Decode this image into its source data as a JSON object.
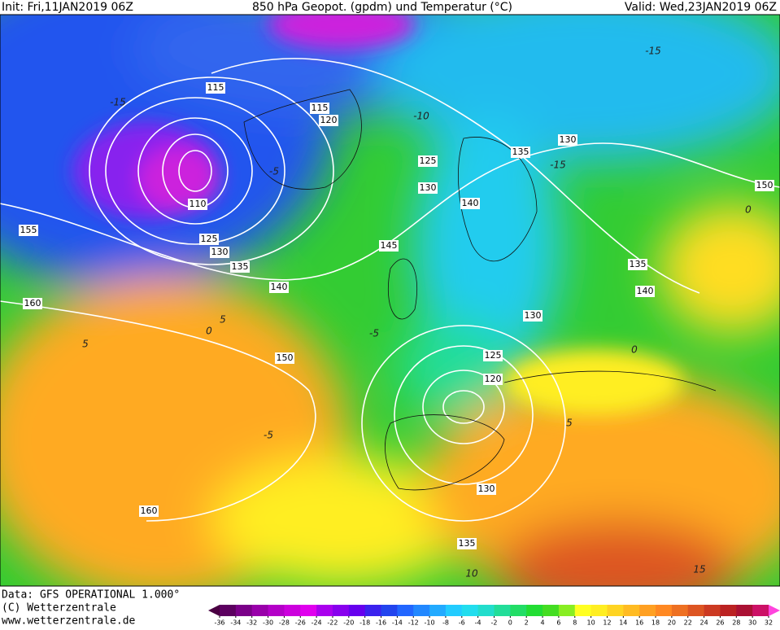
{
  "header": {
    "init": "Init: Fri,11JAN2019 06Z",
    "title": "850 hPa Geopot. (gpdm) und Temperatur (°C)",
    "valid": "Valid: Wed,23JAN2019 06Z"
  },
  "map": {
    "geopotential_labels": [
      "115",
      "115",
      "120",
      "125",
      "130",
      "135",
      "130",
      "150",
      "155",
      "110",
      "125",
      "130",
      "135",
      "140",
      "145",
      "140",
      "135",
      "140",
      "160",
      "150",
      "130",
      "125",
      "120",
      "130",
      "135",
      "160"
    ],
    "temperature_labels": [
      "-15",
      "-10",
      "-5",
      "-15",
      "-15",
      "5",
      "0",
      "5",
      "-5",
      "0",
      "5",
      "10",
      "15",
      "-5",
      "0"
    ]
  },
  "footer": {
    "data": "Data: GFS OPERATIONAL 1.000°",
    "copyright": "(C) Wetterzentrale",
    "url": "www.wetterzentrale.de"
  },
  "colorbar": {
    "labels": [
      -36,
      -34,
      -32,
      -30,
      -28,
      -26,
      -24,
      -22,
      -20,
      -18,
      -16,
      -14,
      -12,
      -10,
      -8,
      -6,
      -4,
      -2,
      0,
      2,
      4,
      6,
      8,
      10,
      12,
      14,
      16,
      18,
      20,
      22,
      24,
      26,
      28,
      30,
      32
    ],
    "colors": [
      "#4a0042",
      "#5c0060",
      "#7a0088",
      "#9900aa",
      "#b400c8",
      "#cc00dd",
      "#e000ee",
      "#aa00ee",
      "#8800ee",
      "#6600ee",
      "#3a22ee",
      "#2244ee",
      "#2266ff",
      "#2288ff",
      "#22aaff",
      "#22ccff",
      "#22ddee",
      "#22ddcc",
      "#22dd99",
      "#22dd66",
      "#22dd33",
      "#44dd22",
      "#88ee22",
      "#ffff22",
      "#ffee22",
      "#ffd422",
      "#ffbb22",
      "#ffa022",
      "#ff8822",
      "#ee7022",
      "#dd5522",
      "#cc3a22",
      "#bb2222",
      "#aa1133",
      "#cc1166",
      "#ee22aa",
      "#ff44dd"
    ]
  }
}
